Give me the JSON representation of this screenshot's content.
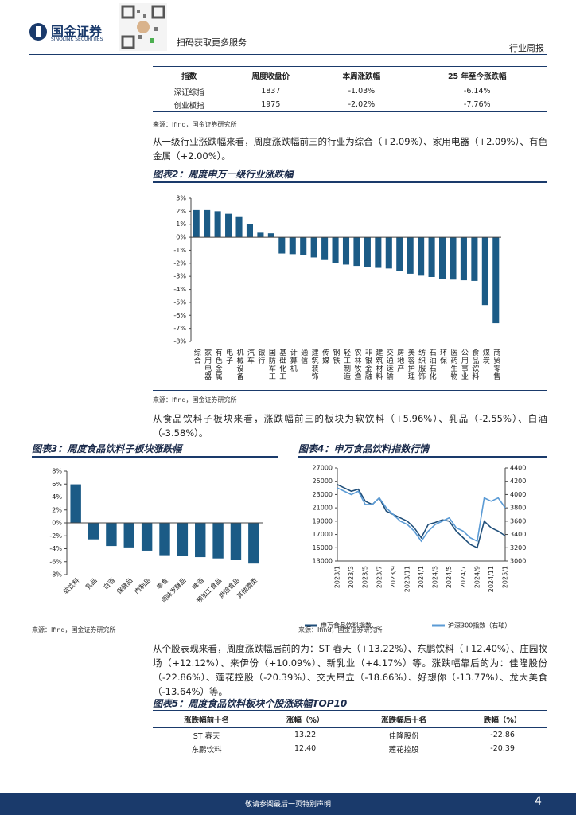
{
  "header": {
    "logo_cn": "国金证券",
    "logo_en": "SINOLINK SECURITIES",
    "qr_text": "扫码获取更多服务",
    "report_type": "行业周报"
  },
  "index_table": {
    "columns": [
      "指数",
      "周度收盘价",
      "本周涨跌幅",
      "25 年至今涨跌幅"
    ],
    "rows": [
      [
        "深证综指",
        "1837",
        "-1.03%",
        "-6.14%"
      ],
      [
        "创业板指",
        "1975",
        "-2.02%",
        "-7.76%"
      ]
    ]
  },
  "sources": [
    "来源：Ifind，国金证券研究所",
    "来源：Ifind，国金证券研究所",
    "来源：Ifind，国金证券研究所",
    "来源：Ifind，国金证券研究所"
  ],
  "paragraphs": [
    "从一级行业涨跌幅来看，周度涨跌幅前三的行业为综合（+2.09%）、家用电器（+2.09%）、有色金属（+2.00%）。",
    "从食品饮料子板块来看，涨跌幅前三的板块为软饮料（+5.96%）、乳品（-2.55%）、白酒（-3.58%）。",
    "从个股表现来看，周度涨跌幅居前的为：ST 春天（+13.22%）、东鹏饮料（+12.40%）、庄园牧场（+12.12%）、来伊份（+10.09%）、新乳业（+4.17%）等。涨跌幅靠后的为：佳隆股份（-22.86%）、莲花控股（-20.39%）、交大昂立（-18.66%）、好想你（-13.77%）、龙大美食（-13.64%）等。"
  ],
  "chart_data": [
    {
      "type": "bar",
      "title": "图表2：周度申万一级行业涨跌幅",
      "color": "#1b5b86",
      "categories": [
        "综合",
        "家用电器",
        "有色金属",
        "电子",
        "机械设备",
        "汽车",
        "银行",
        "国防军工",
        "基础化工",
        "计算机",
        "通信",
        "建筑装饰",
        "传媒",
        "钢铁",
        "轻工制造",
        "农林牧渔",
        "非银金融",
        "建筑材料",
        "交通运输",
        "房地产",
        "美容护理",
        "纺织服饰",
        "石油石化",
        "环保",
        "医药生物",
        "公用事业",
        "食品饮料",
        "煤炭",
        "商贸零售"
      ],
      "values": [
        2.09,
        2.09,
        2.0,
        1.8,
        1.55,
        1.0,
        0.35,
        0.3,
        -1.25,
        -1.3,
        -1.4,
        -1.55,
        -1.75,
        -2.0,
        -2.1,
        -2.2,
        -2.3,
        -2.35,
        -2.4,
        -2.6,
        -2.8,
        -2.95,
        -3.05,
        -3.2,
        -3.25,
        -3.3,
        -3.35,
        -5.2,
        -6.6
      ],
      "ylim": [
        -8,
        3
      ],
      "yticks": [
        {
          "value": -8,
          "label": "-8%"
        },
        {
          "value": -7,
          "label": "-7%"
        },
        {
          "value": -6,
          "label": "-6%"
        },
        {
          "value": -5,
          "label": "-5%"
        },
        {
          "value": -4,
          "label": "-4%"
        },
        {
          "value": -3,
          "label": "-3%"
        },
        {
          "value": -2,
          "label": "-2%"
        },
        {
          "value": -1,
          "label": "-1%"
        },
        {
          "value": 0,
          "label": "0%"
        },
        {
          "value": 1,
          "label": "1%"
        },
        {
          "value": 2,
          "label": "2%"
        },
        {
          "value": 3,
          "label": "3%"
        }
      ],
      "grid": false
    },
    {
      "type": "bar",
      "title": "图表3：周度食品饮料子板块涨跌幅",
      "color": "#1b5b86",
      "categories": [
        "软饮料",
        "乳品",
        "白酒",
        "保健品",
        "肉制品",
        "零食",
        "调味发酵品",
        "啤酒",
        "预加工食品",
        "烘焙食品",
        "其他酒类"
      ],
      "values": [
        5.96,
        -2.55,
        -3.58,
        -3.8,
        -4.3,
        -5.0,
        -5.1,
        -5.3,
        -5.5,
        -5.7,
        -6.3
      ],
      "ylim": [
        -8,
        8
      ],
      "yticks": [
        {
          "value": -8,
          "label": "-8%"
        },
        {
          "value": -6,
          "label": "-6%"
        },
        {
          "value": -4,
          "label": "-4%"
        },
        {
          "value": -2,
          "label": "-2%"
        },
        {
          "value": 0,
          "label": "0%"
        },
        {
          "value": 2,
          "label": "2%"
        },
        {
          "value": 4,
          "label": "4%"
        },
        {
          "value": 6,
          "label": "6%"
        },
        {
          "value": 8,
          "label": "8%"
        }
      ],
      "grid": false
    },
    {
      "type": "line",
      "title": "图表4：申万食品饮料指数行情",
      "categories": [
        "2023/1",
        null,
        "2023/3",
        null,
        "2023/5",
        null,
        "2023/7",
        null,
        "2023/9",
        null,
        "2023/11",
        null,
        "2024/1",
        null,
        "2024/3",
        null,
        "2024/5",
        null,
        "2024/7",
        null,
        "2024/9",
        null,
        "2024/11",
        null,
        "2025/1"
      ],
      "series": [
        {
          "name": "申万食品饮料指数",
          "color": "#1f4e79",
          "values": [
            24500,
            24000,
            23500,
            23800,
            22000,
            21500,
            22500,
            20500,
            20000,
            19500,
            19000,
            18000,
            16500,
            18500,
            18800,
            19200,
            19000,
            17500,
            16500,
            15500,
            15000,
            19000,
            18000,
            17500,
            16800
          ]
        },
        {
          "name": "沪深300指数（右轴）",
          "color": "#5b9bd5",
          "axis": "y2",
          "values": [
            4100,
            4050,
            4000,
            4050,
            3850,
            3850,
            3950,
            3800,
            3700,
            3600,
            3550,
            3450,
            3300,
            3450,
            3550,
            3600,
            3650,
            3500,
            3450,
            3350,
            3300,
            3950,
            3900,
            3950,
            3800
          ]
        }
      ],
      "ylim": [
        13000,
        27000
      ],
      "yticks": [
        13000,
        15000,
        17000,
        19000,
        21000,
        23000,
        25000,
        27000
      ],
      "y2lim": [
        3000,
        4400
      ],
      "y2ticks": [
        3000,
        3200,
        3400,
        3600,
        3800,
        4000,
        4200,
        4400
      ],
      "grid": false,
      "legend": "bottom"
    }
  ],
  "top10_table": {
    "title": "图表5：周度食品饮料板块个股涨跌幅TOP10",
    "columns": [
      "涨跌幅前十名",
      "涨幅（%）",
      "涨跌幅后十名",
      "跌幅（%）"
    ],
    "rows": [
      [
        "ST 春天",
        "13.22",
        "佳隆股份",
        "-22.86"
      ],
      [
        "东鹏饮料",
        "12.40",
        "莲花控股",
        "-20.39"
      ]
    ]
  },
  "footer": {
    "disclaimer": "敬请参阅最后一页特别声明",
    "page": "4"
  }
}
